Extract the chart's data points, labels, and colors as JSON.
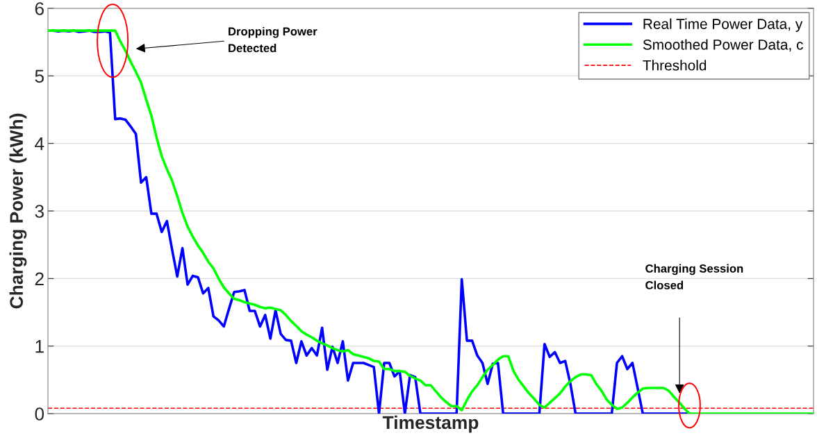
{
  "chart_data": {
    "type": "line",
    "xlabel": "Timestamp",
    "ylabel": "Charging Power (kWh)",
    "categories": [
      null,
      null,
      null,
      null,
      null,
      null,
      null,
      null,
      null,
      null,
      null,
      null,
      null,
      null,
      null,
      null,
      null,
      null,
      null,
      null,
      null,
      null,
      null,
      null,
      null,
      null,
      null,
      null,
      null,
      null,
      null,
      null,
      null,
      null,
      null,
      null,
      null,
      null,
      null,
      null,
      null,
      null,
      null,
      null,
      null,
      null,
      null,
      null,
      null,
      null,
      null,
      null,
      null,
      null,
      null,
      null,
      null,
      null,
      null,
      null,
      null,
      null,
      null,
      null,
      null,
      null,
      null,
      null,
      null,
      null,
      null,
      null,
      null,
      null,
      null,
      null,
      null,
      null,
      null,
      null,
      null,
      null,
      null,
      null,
      null,
      null,
      null,
      null,
      null,
      null,
      null,
      null,
      null,
      null,
      null,
      null,
      null,
      null,
      null,
      null,
      null,
      null,
      null,
      null,
      null,
      null,
      null,
      null,
      null,
      null,
      null,
      null,
      null,
      null,
      null,
      null,
      null,
      null,
      null,
      null,
      null,
      null,
      null,
      null,
      null,
      null,
      null,
      null,
      null,
      null,
      null,
      null,
      null,
      null,
      null,
      null,
      null,
      null,
      null,
      null,
      null,
      null,
      null,
      null,
      null,
      null,
      null,
      null,
      null
    ],
    "series": [
      {
        "name": "Real Time Power Data, y",
        "color": "#0000ff",
        "values": [
          null,
          5.67,
          5.66,
          5.67,
          5.66,
          5.67,
          5.65,
          5.66,
          5.67,
          5.65,
          5.65,
          5.66,
          5.64,
          4.36,
          4.37,
          4.35,
          4.25,
          4.14,
          3.42,
          3.5,
          2.96,
          2.96,
          2.69,
          2.85,
          2.43,
          2.03,
          2.45,
          1.91,
          2.04,
          2.02,
          1.78,
          1.86,
          1.44,
          1.38,
          1.29,
          1.55,
          1.8,
          1.81,
          1.83,
          1.52,
          1.52,
          1.29,
          1.46,
          1.11,
          1.53,
          1.18,
          1.09,
          1.08,
          0.75,
          1.07,
          0.86,
          0.97,
          0.86,
          1.27,
          0.65,
          0.99,
          0.75,
          1.07,
          0.49,
          0.75,
          0.75,
          0.75,
          0.72,
          0.69,
          0,
          0.75,
          0.75,
          0.55,
          0.63,
          0,
          0.57,
          0.54,
          0,
          0,
          0,
          0,
          0,
          0,
          0,
          0,
          1.99,
          1.08,
          1.08,
          0.86,
          0.75,
          0.44,
          0.74,
          0.75,
          0,
          0,
          0,
          0,
          0,
          0,
          0,
          0,
          1.03,
          0.84,
          0.91,
          0.75,
          0.78,
          0.44,
          0,
          0,
          0,
          0,
          0,
          0,
          0,
          0,
          0.75,
          0.85,
          0.66,
          0.75,
          0.38,
          0,
          0,
          0,
          0,
          0,
          0,
          0,
          0,
          0,
          0,
          null,
          null,
          null,
          null,
          null,
          null,
          null,
          null,
          null,
          null,
          null,
          null,
          null,
          null,
          null,
          null,
          null,
          null,
          null,
          null,
          null,
          null,
          null,
          null
        ]
      },
      {
        "name": "Smoothed Power Data, c",
        "color": "#00ff00",
        "values": [
          5.67,
          5.67,
          5.67,
          5.67,
          5.67,
          5.67,
          5.67,
          5.67,
          5.67,
          5.67,
          5.67,
          5.67,
          5.67,
          5.67,
          5.51,
          5.37,
          5.21,
          5.06,
          4.9,
          4.65,
          4.41,
          4.09,
          3.81,
          3.62,
          3.45,
          3.22,
          2.97,
          2.77,
          2.62,
          2.49,
          2.38,
          2.25,
          2.15,
          2.0,
          1.87,
          1.78,
          1.7,
          1.68,
          1.65,
          1.63,
          1.61,
          1.58,
          1.56,
          1.57,
          1.55,
          1.53,
          1.46,
          1.37,
          1.3,
          1.22,
          1.17,
          1.13,
          1.08,
          1.04,
          1.01,
          0.97,
          0.94,
          0.92,
          0.94,
          0.88,
          0.86,
          0.84,
          0.82,
          0.78,
          0.77,
          0.66,
          0.66,
          0.63,
          0.63,
          0.62,
          0.56,
          0.52,
          0.49,
          0.42,
          0.42,
          0.33,
          0.24,
          0.17,
          0.11,
          0.11,
          0.05,
          0.2,
          0.33,
          0.42,
          0.54,
          0.65,
          0.72,
          0.8,
          0.85,
          0.85,
          0.63,
          0.5,
          0.4,
          0.3,
          0.22,
          0.13,
          0.09,
          0.16,
          0.23,
          0.3,
          0.4,
          0.48,
          0.54,
          0.58,
          0.58,
          0.57,
          0.44,
          0.34,
          0.21,
          0.13,
          0.07,
          0.09,
          0.16,
          0.24,
          0.31,
          0.37,
          0.38,
          0.38,
          0.38,
          0.38,
          0.34,
          0.25,
          0.17,
          0.08,
          0,
          0,
          0,
          0,
          0,
          0,
          0,
          0,
          0,
          0,
          0,
          0,
          0,
          0,
          0,
          0,
          0,
          0,
          0,
          0,
          0,
          0,
          0,
          0,
          0
        ]
      }
    ],
    "ref_lines": [
      {
        "axis": "y",
        "value": 0.08,
        "label": "Threshold",
        "color": "#ff0000",
        "line_style": "dashed"
      }
    ],
    "annotations": [
      "Dropping Power Detected",
      "Charging Session Closed"
    ],
    "ylim": [
      0,
      6
    ],
    "yticks": [
      0,
      1,
      2,
      3,
      4,
      5,
      6
    ],
    "grid": "y",
    "legend": "top right",
    "tick_labels": "y",
    "line_style": "solid",
    "marker": "none"
  }
}
